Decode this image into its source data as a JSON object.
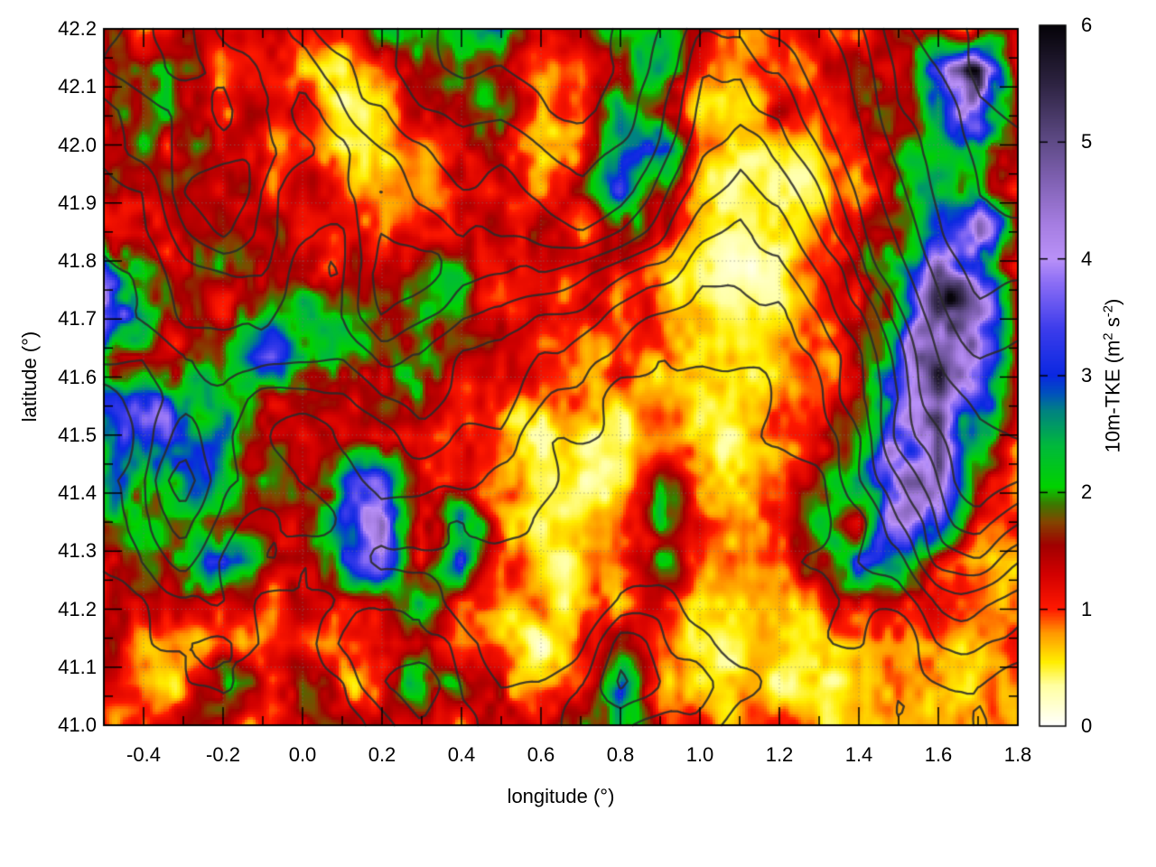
{
  "chart_data": {
    "type": "heatmap",
    "title": "",
    "xlabel": "longitude (°)",
    "ylabel": "latitude (°)",
    "xlim": [
      -0.5,
      1.8
    ],
    "ylim": [
      41.0,
      42.2
    ],
    "zlim": [
      0,
      6
    ],
    "grid_dotted": true,
    "x_tick_values": [
      -0.4,
      -0.2,
      0.0,
      0.2,
      0.4,
      0.6,
      0.8,
      1.0,
      1.2,
      1.4,
      1.6,
      1.8
    ],
    "x_tick_labels": [
      "-0.4",
      "-0.2",
      "0.0",
      "0.2",
      "0.4",
      "0.6",
      "0.8",
      "1.0",
      "1.2",
      "1.4",
      "1.6",
      "1.8"
    ],
    "x_minor_step": 0.1,
    "y_tick_values": [
      41.0,
      41.1,
      41.2,
      41.3,
      41.4,
      41.5,
      41.6,
      41.7,
      41.8,
      41.9,
      42.0,
      42.1,
      42.2
    ],
    "y_tick_labels": [
      "41.0",
      "41.1",
      "41.2",
      "41.3",
      "41.4",
      "41.5",
      "41.6",
      "41.7",
      "41.8",
      "41.9",
      "42.0",
      "42.1",
      "42.2"
    ],
    "y_minor_step": 0.05,
    "colorbar": {
      "label": "10m-TKE (m² s⁻²)",
      "label_parts": {
        "pre": "10m-TKE (m",
        "sup1": "2",
        "mid": " s",
        "sup2": "-2",
        "post": ")"
      },
      "tick_values": [
        0,
        1,
        2,
        3,
        4,
        5,
        6
      ],
      "tick_labels": [
        "0",
        "1",
        "2",
        "3",
        "4",
        "5",
        "6"
      ],
      "range": [
        0,
        6
      ]
    },
    "colors": {
      "contour": "rgba(42,42,42,0.88)",
      "grid_dots": "rgba(120,120,120,0.6)",
      "frame": "#000000",
      "background": "#ffffff"
    },
    "palette_stops": [
      [
        0.0,
        255,
        255,
        255
      ],
      [
        0.35,
        255,
        255,
        160
      ],
      [
        0.55,
        255,
        238,
        0
      ],
      [
        0.8,
        255,
        150,
        0
      ],
      [
        1.0,
        255,
        25,
        0
      ],
      [
        1.3,
        210,
        0,
        0
      ],
      [
        1.55,
        160,
        0,
        0
      ],
      [
        1.75,
        130,
        70,
        0
      ],
      [
        1.9,
        60,
        120,
        0
      ],
      [
        2.05,
        0,
        210,
        0
      ],
      [
        2.4,
        0,
        185,
        60
      ],
      [
        2.7,
        0,
        130,
        130
      ],
      [
        2.85,
        0,
        80,
        190
      ],
      [
        3.0,
        10,
        40,
        225
      ],
      [
        3.4,
        60,
        60,
        235
      ],
      [
        3.8,
        140,
        110,
        245
      ],
      [
        4.0,
        185,
        145,
        248
      ],
      [
        4.3,
        165,
        125,
        225
      ],
      [
        4.7,
        125,
        95,
        175
      ],
      [
        5.0,
        95,
        75,
        135
      ],
      [
        5.5,
        45,
        35,
        65
      ],
      [
        6.0,
        5,
        3,
        8
      ]
    ],
    "tke_grid": {
      "cols": 24,
      "rows": 18,
      "lon_range": [
        -0.5,
        1.8
      ],
      "lat_range": [
        42.2,
        41.0
      ],
      "values": [
        [
          1.5,
          1.0,
          1.2,
          1.0,
          1.1,
          1.3,
          0.9,
          1.8,
          2.2,
          1.8,
          2.4,
          1.3,
          1.2,
          1.9,
          2.0,
          1.1,
          0.9,
          1.0,
          1.2,
          1.0,
          1.3,
          1.2,
          1.3,
          1.0
        ],
        [
          1.2,
          2.0,
          1.4,
          1.2,
          1.1,
          0.9,
          0.5,
          0.8,
          1.5,
          2.0,
          1.8,
          1.1,
          0.8,
          1.6,
          2.2,
          0.8,
          0.7,
          0.9,
          1.0,
          1.5,
          1.5,
          3.5,
          5.5,
          1.5
        ],
        [
          1.3,
          2.2,
          1.5,
          1.3,
          1.2,
          1.0,
          0.5,
          0.6,
          1.2,
          2.2,
          2.0,
          0.8,
          0.8,
          2.0,
          1.5,
          0.7,
          0.8,
          1.1,
          0.9,
          1.2,
          1.8,
          2.5,
          4.5,
          1.5
        ],
        [
          1.3,
          1.8,
          1.5,
          1.4,
          1.3,
          1.1,
          0.8,
          0.7,
          1.0,
          1.8,
          1.5,
          0.8,
          1.0,
          2.5,
          3.0,
          0.8,
          0.5,
          0.5,
          0.6,
          1.0,
          2.0,
          2.2,
          2.0,
          1.2
        ],
        [
          1.5,
          1.3,
          1.4,
          1.5,
          1.3,
          1.2,
          1.0,
          0.9,
          0.8,
          1.2,
          1.3,
          1.0,
          1.5,
          2.8,
          1.5,
          0.6,
          0.4,
          0.4,
          0.5,
          0.9,
          1.8,
          2.2,
          2.4,
          1.4
        ],
        [
          1.4,
          1.2,
          1.5,
          1.4,
          1.4,
          1.3,
          1.2,
          1.3,
          1.0,
          1.2,
          1.3,
          1.5,
          1.0,
          1.8,
          1.2,
          0.7,
          0.5,
          0.4,
          0.8,
          1.4,
          1.8,
          2.5,
          4.2,
          1.5
        ],
        [
          4.0,
          2.2,
          1.5,
          1.5,
          1.4,
          1.3,
          1.2,
          1.4,
          1.8,
          2.0,
          1.3,
          1.1,
          1.0,
          1.0,
          0.8,
          0.5,
          0.3,
          0.4,
          0.9,
          1.5,
          2.5,
          4.5,
          3.5,
          1.3
        ],
        [
          5.0,
          2.5,
          1.5,
          1.4,
          2.0,
          2.5,
          2.0,
          1.5,
          2.0,
          1.6,
          1.2,
          1.3,
          1.2,
          1.1,
          0.9,
          0.6,
          0.4,
          0.5,
          1.0,
          1.3,
          2.0,
          5.0,
          4.0,
          1.2
        ],
        [
          1.8,
          1.5,
          1.6,
          2.0,
          3.0,
          3.0,
          1.6,
          1.6,
          2.2,
          1.4,
          1.0,
          0.9,
          0.9,
          0.9,
          0.9,
          0.7,
          0.5,
          0.6,
          0.9,
          1.2,
          3.0,
          5.5,
          4.5,
          1.2
        ],
        [
          2.8,
          3.2,
          2.6,
          2.0,
          1.5,
          1.5,
          1.5,
          1.4,
          1.8,
          1.2,
          1.0,
          0.8,
          0.8,
          0.8,
          0.8,
          0.6,
          0.5,
          0.7,
          1.0,
          1.5,
          3.5,
          5.0,
          3.5,
          1.0
        ],
        [
          2.5,
          3.2,
          3.0,
          2.5,
          1.5,
          1.4,
          1.3,
          1.2,
          1.0,
          0.9,
          0.8,
          0.5,
          0.4,
          0.5,
          0.7,
          0.6,
          0.6,
          0.8,
          1.2,
          2.0,
          4.0,
          4.5,
          2.5,
          0.8
        ],
        [
          2.2,
          2.6,
          2.8,
          2.4,
          1.8,
          1.3,
          2.5,
          3.2,
          1.4,
          1.0,
          0.8,
          0.5,
          0.4,
          0.5,
          1.5,
          0.8,
          0.7,
          1.0,
          1.5,
          2.5,
          4.8,
          4.0,
          1.5,
          0.9
        ],
        [
          1.8,
          2.2,
          1.8,
          1.5,
          1.6,
          1.4,
          3.0,
          4.0,
          1.5,
          2.8,
          1.0,
          0.6,
          0.5,
          0.8,
          2.2,
          1.2,
          0.8,
          1.2,
          2.0,
          1.5,
          4.5,
          3.5,
          1.2,
          1.0
        ],
        [
          1.2,
          2.0,
          2.2,
          3.0,
          2.0,
          1.5,
          2.5,
          3.5,
          1.2,
          3.0,
          0.9,
          0.7,
          0.6,
          1.0,
          1.8,
          1.0,
          0.7,
          1.0,
          1.5,
          3.0,
          2.5,
          1.5,
          0.8,
          0.5
        ],
        [
          1.3,
          1.4,
          1.5,
          1.4,
          1.3,
          1.2,
          1.1,
          1.4,
          2.0,
          1.2,
          0.8,
          0.6,
          0.7,
          0.9,
          1.0,
          0.8,
          0.6,
          0.8,
          1.0,
          1.5,
          1.2,
          0.9,
          0.8,
          0.7
        ],
        [
          1.3,
          0.9,
          0.7,
          0.8,
          1.0,
          0.8,
          0.7,
          0.8,
          1.5,
          0.9,
          0.7,
          0.4,
          1.2,
          1.5,
          0.9,
          0.7,
          0.5,
          0.6,
          0.8,
          0.9,
          1.0,
          0.9,
          0.9,
          1.0
        ],
        [
          0.9,
          0.7,
          0.8,
          1.8,
          1.4,
          1.6,
          1.0,
          1.0,
          2.5,
          1.8,
          1.5,
          0.5,
          1.0,
          2.8,
          1.0,
          0.8,
          0.6,
          0.5,
          0.6,
          0.7,
          0.9,
          0.8,
          0.7,
          0.8
        ],
        [
          1.4,
          1.2,
          1.3,
          1.2,
          1.1,
          1.3,
          1.2,
          1.1,
          1.3,
          1.2,
          1.4,
          1.2,
          1.5,
          2.2,
          1.2,
          1.0,
          0.9,
          0.8,
          0.7,
          0.6,
          0.6,
          0.6,
          0.5,
          0.8
        ]
      ]
    },
    "terrain_contours": {
      "cols": 24,
      "rows": 18,
      "levels": [
        3,
        4,
        5,
        6,
        7,
        8,
        9,
        10,
        12,
        14,
        16,
        18,
        20
      ],
      "values": [
        [
          8,
          9,
          10,
          9,
          8,
          9,
          11,
          12,
          13,
          14,
          15,
          16,
          15,
          14,
          12,
          10,
          9,
          10,
          12,
          14,
          17,
          19,
          21,
          22
        ],
        [
          8,
          9,
          10,
          10,
          9,
          8,
          10,
          12,
          13,
          14,
          14,
          15,
          16,
          14,
          11,
          9,
          8,
          9,
          11,
          13,
          16,
          18,
          21,
          21
        ],
        [
          7,
          8,
          9,
          10,
          9,
          8,
          9,
          10,
          12,
          13,
          13,
          14,
          15,
          13,
          10,
          8,
          7,
          8,
          10,
          12,
          15,
          17,
          20,
          20
        ],
        [
          7,
          8,
          9,
          9,
          10,
          9,
          8,
          9,
          10,
          12,
          11,
          12,
          13,
          11,
          9,
          7,
          6,
          7,
          9,
          11,
          14,
          17,
          19,
          19
        ],
        [
          6,
          7,
          10,
          11,
          9,
          8,
          8,
          8,
          9,
          10,
          10,
          10,
          11,
          10,
          8,
          6,
          5,
          6,
          8,
          10,
          13,
          16,
          18,
          18
        ],
        [
          6,
          7,
          9,
          10,
          9,
          8,
          7,
          9,
          8,
          9,
          9,
          9,
          9,
          8,
          7,
          5,
          4,
          5,
          7,
          9,
          12,
          15,
          17,
          17
        ],
        [
          5,
          6,
          8,
          8,
          8,
          7,
          7,
          10,
          9,
          8,
          8,
          8,
          7,
          6,
          5,
          4,
          4,
          4,
          6,
          8,
          11,
          14,
          16,
          16
        ],
        [
          5,
          6,
          7,
          7,
          7,
          6,
          7,
          9,
          8,
          7,
          7,
          6,
          6,
          5,
          4,
          3,
          3,
          4,
          5,
          7,
          10,
          13,
          15,
          15
        ],
        [
          5,
          5,
          6,
          6,
          6,
          6,
          6,
          7,
          7,
          6,
          6,
          5,
          5,
          4,
          3,
          3,
          3,
          3,
          4,
          6,
          9,
          12,
          14,
          14
        ],
        [
          4,
          5,
          6,
          6,
          5,
          5,
          5,
          6,
          6,
          5,
          5,
          4,
          4,
          3,
          3,
          2,
          2,
          3,
          4,
          6,
          8,
          11,
          13,
          13
        ],
        [
          4,
          5,
          7,
          6,
          5,
          4,
          5,
          5,
          5,
          4,
          4,
          3,
          3,
          3,
          2,
          2,
          2,
          3,
          4,
          5,
          8,
          10,
          12,
          12
        ],
        [
          4,
          5,
          8,
          6,
          5,
          4,
          4,
          5,
          4,
          4,
          3,
          3,
          2,
          2,
          2,
          2,
          2,
          2,
          3,
          5,
          7,
          9,
          11,
          10
        ],
        [
          3,
          4,
          6,
          5,
          4,
          4,
          4,
          4,
          4,
          3,
          3,
          2,
          2,
          2,
          2,
          2,
          2,
          2,
          3,
          4,
          6,
          8,
          9,
          8
        ],
        [
          3,
          4,
          5,
          4,
          4,
          3,
          4,
          3,
          3,
          3,
          2,
          2,
          2,
          2,
          2,
          2,
          2,
          2,
          3,
          4,
          5,
          7,
          7,
          6
        ],
        [
          3,
          3,
          4,
          4,
          3,
          3,
          3,
          3,
          4,
          3,
          2,
          2,
          2,
          3,
          3,
          2,
          2,
          2,
          2,
          3,
          4,
          5,
          5,
          5
        ],
        [
          2,
          3,
          3,
          3,
          3,
          3,
          4,
          4,
          5,
          4,
          3,
          2,
          3,
          5,
          4,
          3,
          2,
          2,
          2,
          3,
          3,
          4,
          4,
          4
        ],
        [
          2,
          2,
          3,
          3,
          2,
          3,
          3,
          5,
          6,
          4,
          3,
          3,
          4,
          6,
          5,
          4,
          3,
          2,
          2,
          2,
          3,
          3,
          3,
          3
        ],
        [
          2,
          2,
          2,
          2,
          2,
          2,
          3,
          4,
          5,
          4,
          3,
          3,
          4,
          5,
          4,
          3,
          2,
          2,
          2,
          2,
          2,
          2,
          3,
          3
        ]
      ]
    }
  }
}
